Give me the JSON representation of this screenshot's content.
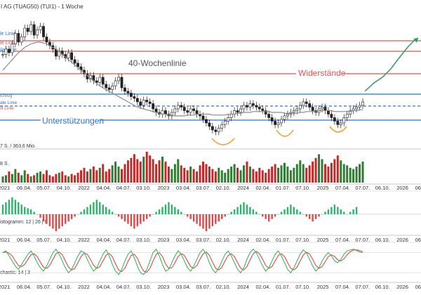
{
  "header": {
    "title": "I AG (TUAG50) (TUI1) - 1 Woche"
  },
  "colors": {
    "support": "#2a6fd6",
    "resistance": "#e05555",
    "candle_up": "#2e7d32",
    "candle_down": "#c62828",
    "ma": "#8a8a8a",
    "projection": "#2f9e63",
    "volume_up": "#2e7d32",
    "volume_down": "#c62828",
    "hist_pos": "#2db36b",
    "hist_neg": "#e04848",
    "stoch_k": "#2db34a",
    "stoch_d": "#d83a3a",
    "highlight_orange": "#f0a020"
  },
  "annotations": {
    "ma_label": "40-Wochenlinie",
    "resistance_label": "Widerstände",
    "support_label": "Unterstützungen"
  },
  "left_labels": {
    "blue_line": "le Linie",
    "red_line": "le Linie",
    "red_line_2": "ile Linie",
    "kurs": "kzeug",
    "kurs_blue": "ale Linie",
    "kurs_red": "ill Linie"
  },
  "panels": {
    "volume_label": "7 S. / 363,6 Mio.",
    "volume_small": "8 S.",
    "macd_label": "istogramm: 12 | 26 | 9",
    "stoch_label": "chastic: 14 | 3"
  },
  "x_axis": {
    "row1": [
      "2021",
      "06.04.",
      "05.07.",
      "04.10.",
      "2022",
      "04.04.",
      "04.07.",
      "03.10.",
      "2023",
      "03.04.",
      "03.07.",
      "02.10.",
      "2024",
      "02.04.",
      "01.07.",
      "07.10.",
      "2025",
      "07.04.",
      "07.07.",
      "06.10.",
      "2026",
      "06.04."
    ],
    "row2": [
      "2021",
      "06.04.",
      "05.07.",
      "04.10.",
      "2022",
      "04.04.",
      "04.07.",
      "03.10.",
      "2023",
      "03.04.",
      "03.07.",
      "02.10.",
      "2024",
      "02.04.",
      "01.07.",
      "07.10.",
      "2025",
      "07.04.",
      "07.07.",
      "06.10.",
      "2026",
      "06.04."
    ],
    "row3": [
      "2021",
      "06.04.",
      "05.07.",
      "04.10.",
      "2022",
      "04.04.",
      "04.07.",
      "03.10.",
      "2023",
      "03.04.",
      "03.07.",
      "02.10.",
      "2024",
      "02.04.",
      "01.07.",
      "07.10.",
      "2025",
      "07.04.",
      "07.07.",
      "06.10.",
      "2026",
      "06.04."
    ]
  },
  "chart_data": {
    "type": "candlestick",
    "title": "I AG (TUAG50) (TUI1) - 1 Woche",
    "price_path": [
      98,
      104,
      100,
      110,
      122,
      112,
      118,
      128,
      124,
      132,
      120,
      126,
      130,
      118,
      112,
      108,
      104,
      96,
      102,
      98,
      94,
      100,
      92,
      88,
      84,
      80,
      76,
      70,
      74,
      68,
      66,
      72,
      64,
      60,
      58,
      62,
      68,
      72,
      60,
      56,
      54,
      50,
      48,
      44,
      40,
      46,
      44,
      42,
      36,
      32,
      30,
      34,
      30,
      28,
      32,
      36,
      40,
      38,
      34,
      32,
      36,
      34,
      30,
      28,
      24,
      20,
      16,
      12,
      10,
      14,
      18,
      22,
      26,
      30,
      34,
      32,
      36,
      40,
      38,
      42,
      40,
      38,
      36,
      34,
      30,
      26,
      22,
      18,
      20,
      24,
      28,
      30,
      32,
      34,
      36,
      40,
      44,
      42,
      38,
      34,
      32,
      36,
      38,
      34,
      30,
      26,
      22,
      18,
      20,
      26,
      30,
      34,
      36,
      38,
      40,
      44
    ],
    "ma40_path": [
      80,
      84,
      88,
      92,
      96,
      100,
      103,
      106,
      108,
      110,
      111,
      112,
      112,
      111,
      110,
      108,
      106,
      104,
      101,
      98,
      95,
      92,
      89,
      86,
      83,
      80,
      77,
      74,
      71,
      68,
      65,
      62,
      60,
      58,
      56,
      54,
      52,
      50,
      48,
      46,
      44,
      42,
      40,
      38,
      37,
      36,
      35,
      34,
      33,
      32,
      31,
      30,
      30,
      29,
      29,
      28,
      28,
      28,
      28,
      29,
      29,
      29,
      30,
      30,
      30,
      30,
      30,
      29,
      29,
      29,
      29,
      29,
      30,
      30,
      30,
      31,
      31,
      32,
      32,
      32,
      33,
      33,
      33,
      33,
      33,
      33,
      32,
      32,
      32,
      32,
      31,
      31,
      31,
      31,
      31,
      32,
      32,
      33,
      33,
      33,
      33,
      34,
      34,
      34,
      34,
      34,
      33,
      33,
      33,
      33,
      33,
      33,
      34,
      34,
      35,
      35
    ],
    "volume": [
      10,
      12,
      18,
      14,
      22,
      16,
      12,
      20,
      14,
      10,
      12,
      16,
      18,
      14,
      20,
      12,
      10,
      14,
      16,
      18,
      12,
      10,
      14,
      12,
      16,
      20,
      24,
      18,
      22,
      26,
      20,
      24,
      30,
      18,
      22,
      28,
      34,
      26,
      22,
      30,
      36,
      40,
      46,
      38,
      34,
      42,
      50,
      44,
      38,
      30,
      36,
      42,
      34,
      26,
      22,
      30,
      38,
      28,
      24,
      20,
      26,
      22,
      18,
      28,
      34,
      30,
      26,
      22,
      18,
      24,
      20,
      16,
      22,
      26,
      30,
      24,
      20,
      28,
      34,
      26,
      22,
      18,
      24,
      20,
      16,
      22,
      26,
      30,
      24,
      28,
      32,
      26,
      20,
      24,
      30,
      36,
      30,
      24,
      28,
      34,
      40,
      46,
      38,
      30,
      26,
      32,
      38,
      44,
      36,
      30,
      28,
      24,
      22,
      26,
      30,
      34
    ],
    "macd": [
      8,
      10,
      12,
      14,
      12,
      10,
      8,
      6,
      5,
      4,
      2,
      0,
      -3,
      -6,
      -8,
      -10,
      -12,
      -14,
      -12,
      -10,
      -8,
      -6,
      -4,
      -2,
      0,
      2,
      4,
      6,
      8,
      10,
      12,
      10,
      8,
      6,
      4,
      2,
      0,
      -2,
      -4,
      -6,
      -8,
      -10,
      -12,
      -10,
      -8,
      -6,
      -4,
      -2,
      0,
      2,
      4,
      6,
      8,
      10,
      8,
      6,
      4,
      2,
      0,
      -2,
      -4,
      -6,
      -8,
      -10,
      -12,
      -14,
      -12,
      -10,
      -8,
      -6,
      -4,
      -2,
      0,
      2,
      4,
      6,
      8,
      10,
      8,
      6,
      4,
      2,
      0,
      -2,
      -4,
      -6,
      -4,
      -2,
      0,
      2,
      4,
      6,
      8,
      6,
      4,
      2,
      0,
      -2,
      -4,
      -6,
      -4,
      -2,
      0,
      2,
      4,
      6,
      8,
      6,
      4,
      2,
      0,
      2,
      4,
      6
    ],
    "stoch_k": [
      80,
      85,
      70,
      55,
      40,
      30,
      45,
      60,
      75,
      85,
      70,
      50,
      35,
      25,
      40,
      60,
      80,
      90,
      75,
      55,
      35,
      20,
      30,
      50,
      70,
      85,
      80,
      60,
      40,
      25,
      35,
      55,
      75,
      88,
      70,
      45,
      25,
      15,
      30,
      55,
      75,
      85,
      65,
      40,
      20,
      15,
      30,
      55,
      80,
      90,
      70,
      45,
      25,
      30,
      50,
      70,
      85,
      75,
      55,
      35,
      25,
      40,
      60,
      80,
      90,
      75,
      50,
      30,
      20,
      35,
      55,
      75,
      85,
      70,
      50,
      30,
      20,
      35,
      60,
      80,
      90,
      80,
      60,
      40,
      25,
      35,
      55,
      75,
      85,
      70,
      50,
      30,
      20,
      35,
      55,
      75,
      88,
      80,
      60,
      40,
      25,
      35,
      55,
      70,
      80,
      70,
      55,
      50,
      60,
      75,
      85,
      88,
      90,
      86,
      82,
      80
    ]
  }
}
